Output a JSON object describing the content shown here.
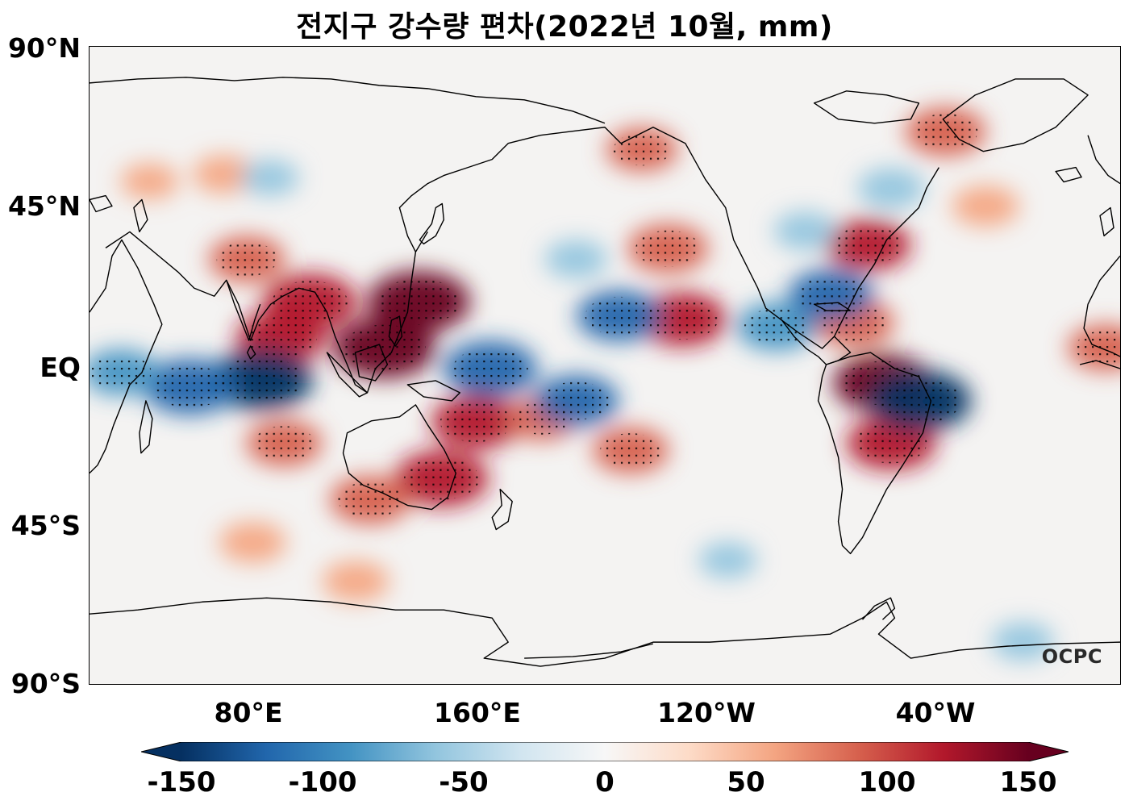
{
  "title": "전지구 강수량 편차(2022년 10월, mm)",
  "lat_labels": [
    "90°N",
    "45°N",
    "EQ",
    "45°S",
    "90°S"
  ],
  "lon_labels": [
    "80°E",
    "160°E",
    "120°W",
    "40°W"
  ],
  "colorbar": {
    "ticks": [
      "-150",
      "-100",
      "-50",
      "0",
      "50",
      "100",
      "150"
    ],
    "min": -150,
    "max": 150,
    "colors": [
      "#053061",
      "#2166ac",
      "#4393c3",
      "#92c5de",
      "#d1e5f0",
      "#f7f7f7",
      "#fddbc7",
      "#f4a582",
      "#d6604d",
      "#b2182b",
      "#67001f"
    ]
  },
  "watermark": "OCPC",
  "map": {
    "lon_range": [
      25,
      385
    ],
    "lat_range": [
      -90,
      90
    ],
    "anomalies": [
      {
        "lon": 140,
        "lat": 18,
        "value": 150
      },
      {
        "lon": 128,
        "lat": 5,
        "value": 150
      },
      {
        "lon": 102,
        "lat": 18,
        "value": 130
      },
      {
        "lon": 92,
        "lat": 8,
        "value": 120
      },
      {
        "lon": 80,
        "lat": 30,
        "value": 90
      },
      {
        "lon": 160,
        "lat": -16,
        "value": 120
      },
      {
        "lon": 148,
        "lat": -32,
        "value": 130
      },
      {
        "lon": 123,
        "lat": -38,
        "value": 100
      },
      {
        "lon": 93,
        "lat": -22,
        "value": 90
      },
      {
        "lon": 183,
        "lat": -15,
        "value": 80
      },
      {
        "lon": 214,
        "lat": -24,
        "value": 90
      },
      {
        "lon": 227,
        "lat": 33,
        "value": 100
      },
      {
        "lon": 232,
        "lat": 13,
        "value": 120
      },
      {
        "lon": 218,
        "lat": 61,
        "value": 80
      },
      {
        "lon": 297,
        "lat": 34,
        "value": 110
      },
      {
        "lon": 292,
        "lat": 12,
        "value": 100
      },
      {
        "lon": 302,
        "lat": -5,
        "value": 140
      },
      {
        "lon": 305,
        "lat": -22,
        "value": 120
      },
      {
        "lon": 324,
        "lat": 66,
        "value": 100
      },
      {
        "lon": 338,
        "lat": 45,
        "value": 70
      },
      {
        "lon": 380,
        "lat": 5,
        "value": 90
      },
      {
        "lon": 72,
        "lat": 54,
        "value": 60
      },
      {
        "lon": 82,
        "lat": -50,
        "value": 70
      },
      {
        "lon": 118,
        "lat": -61,
        "value": 70
      },
      {
        "lon": 46,
        "lat": 52,
        "value": 50
      },
      {
        "lon": 85,
        "lat": -4,
        "value": -150
      },
      {
        "lon": 60,
        "lat": -6,
        "value": -130
      },
      {
        "lon": 165,
        "lat": -1,
        "value": -130
      },
      {
        "lon": 195,
        "lat": -10,
        "value": -110
      },
      {
        "lon": 210,
        "lat": 14,
        "value": -110
      },
      {
        "lon": 265,
        "lat": 11,
        "value": -100
      },
      {
        "lon": 284,
        "lat": 20,
        "value": -110
      },
      {
        "lon": 315,
        "lat": -10,
        "value": -150
      },
      {
        "lon": 305,
        "lat": 50,
        "value": -70
      },
      {
        "lon": 275,
        "lat": 38,
        "value": -60
      },
      {
        "lon": 195,
        "lat": 30,
        "value": -60
      },
      {
        "lon": 36,
        "lat": -2,
        "value": -90
      },
      {
        "lon": 351,
        "lat": -78,
        "value": -60
      },
      {
        "lon": 248,
        "lat": -55,
        "value": -50
      },
      {
        "lon": 88,
        "lat": 53,
        "value": -50
      }
    ]
  }
}
